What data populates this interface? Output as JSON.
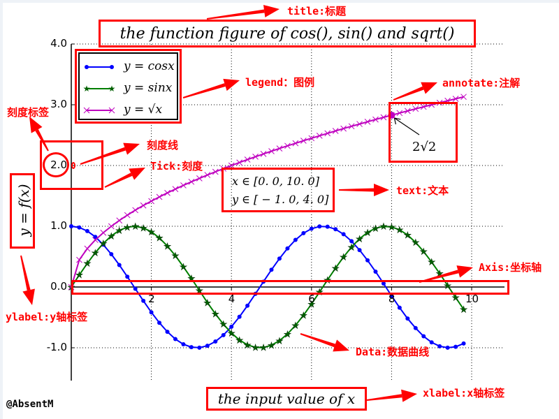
{
  "chart_data": {
    "type": "line",
    "title": "the function figure of cos(), sin() and sqrt()",
    "xlabel": "the input value of x",
    "ylabel": "y = f(x)",
    "xlim": [
      0,
      10.8
    ],
    "ylim": [
      -1.54,
      4.0
    ],
    "grid": true,
    "legend_position": "upper left",
    "x_ticks": [
      2,
      4,
      6,
      8,
      10
    ],
    "x_tick_labels": [
      "2",
      "4",
      "6",
      "8",
      "10"
    ],
    "y_ticks": [
      4.0,
      3.0,
      2.0,
      1.0,
      0.0,
      -1.0
    ],
    "y_tick_labels": [
      "4.0",
      "3.0",
      "2.0",
      "1.0",
      "0.0",
      "-1.0"
    ],
    "x": [
      0.0,
      0.2,
      0.4,
      0.6,
      0.8,
      1.0,
      1.2,
      1.4,
      1.6,
      1.8,
      2.0,
      2.2,
      2.4,
      2.6,
      2.8,
      3.0,
      3.2,
      3.4,
      3.6,
      3.8,
      4.0,
      4.2,
      4.4,
      4.6,
      4.8,
      5.0,
      5.2,
      5.4,
      5.6,
      5.8,
      6.0,
      6.2,
      6.4,
      6.6,
      6.8,
      7.0,
      7.2,
      7.4,
      7.6,
      7.8,
      8.0,
      8.2,
      8.4,
      8.6,
      8.8,
      9.0,
      9.2,
      9.4,
      9.6,
      9.8
    ],
    "series": [
      {
        "name": "y = cosx",
        "color": "#0000ff",
        "marker": "dot",
        "values": [
          1.0,
          0.98,
          0.921,
          0.825,
          0.697,
          0.54,
          0.362,
          0.17,
          -0.029,
          -0.227,
          -0.416,
          -0.589,
          -0.737,
          -0.857,
          -0.942,
          -0.99,
          -0.998,
          -0.967,
          -0.897,
          -0.791,
          -0.654,
          -0.49,
          -0.307,
          -0.112,
          0.087,
          0.284,
          0.469,
          0.635,
          0.776,
          0.886,
          0.96,
          0.997,
          0.993,
          0.951,
          0.869,
          0.754,
          0.608,
          0.439,
          0.253,
          0.057,
          -0.146,
          -0.34,
          -0.519,
          -0.676,
          -0.811,
          -0.911,
          -0.975,
          -0.999,
          -0.984,
          -0.93
        ]
      },
      {
        "name": "y = sinx",
        "color": "#007f00",
        "marker": "star",
        "values": [
          0.0,
          0.199,
          0.389,
          0.565,
          0.717,
          0.841,
          0.932,
          0.985,
          1.0,
          0.974,
          0.909,
          0.808,
          0.675,
          0.516,
          0.335,
          0.141,
          -0.058,
          -0.256,
          -0.443,
          -0.612,
          -0.757,
          -0.872,
          -0.952,
          -0.994,
          -0.996,
          -0.959,
          -0.883,
          -0.773,
          -0.631,
          -0.465,
          -0.279,
          -0.083,
          0.117,
          0.312,
          0.494,
          0.657,
          0.794,
          0.899,
          0.968,
          0.998,
          0.989,
          0.941,
          0.855,
          0.734,
          0.585,
          0.412,
          0.223,
          0.025,
          -0.174,
          -0.366
        ]
      },
      {
        "name": "y = sqrt(x)",
        "color": "#bf00bf",
        "marker": "x",
        "values": [
          0.0,
          0.447,
          0.632,
          0.775,
          0.894,
          1.0,
          1.095,
          1.183,
          1.265,
          1.342,
          1.414,
          1.483,
          1.549,
          1.612,
          1.673,
          1.732,
          1.789,
          1.844,
          1.897,
          1.949,
          2.0,
          2.049,
          2.098,
          2.145,
          2.191,
          2.236,
          2.28,
          2.324,
          2.366,
          2.408,
          2.449,
          2.49,
          2.53,
          2.569,
          2.608,
          2.646,
          2.683,
          2.72,
          2.757,
          2.793,
          2.828,
          2.864,
          2.898,
          2.933,
          2.966,
          3.0,
          3.033,
          3.066,
          3.098,
          3.13
        ]
      }
    ],
    "annotation": {
      "text": "2√2",
      "point": [
        8,
        2.828
      ]
    },
    "text": [
      "x ∈ [0.0, 10.0]",
      "y ∈ [−1.0, 4.0]"
    ]
  },
  "title": "the function figure of cos(), sin() and sqrt()",
  "xlabel": "the input value of x",
  "ylabel": "y = f(x)",
  "legend": {
    "items": [
      {
        "label": "y = cosx",
        "color": "#0000ff"
      },
      {
        "label": "y = sinx",
        "color": "#007f00"
      },
      {
        "label": "y = √x",
        "color": "#bf00bf"
      }
    ]
  },
  "ticks": {
    "x": [
      "2",
      "4",
      "6",
      "8",
      "10"
    ],
    "y": [
      "4.0",
      "3.0",
      "2.0",
      "1.0",
      "0.0",
      "-1.0"
    ]
  },
  "textbox": {
    "line1": "x ∈ [0. 0,  10. 0]",
    "line2": "y ∈ [ − 1. 0,  4. 0]"
  },
  "annotation_text": "2√2",
  "annotations": {
    "title": "title:标题",
    "legend": "legend：图例",
    "annotate": "annotate:注解",
    "tick_label": "刻度标签",
    "tick_line": "刻度线",
    "tick": "Tick:刻度",
    "text": "text:文本",
    "axis": "Axis:坐标轴",
    "ylabel": "ylabel:y轴标签",
    "data": "Data:数据曲线",
    "xlabel": "xlabel:x轴标签"
  },
  "watermark": "@AbsentM",
  "colors": {
    "annotation_red": "#ff0000",
    "cos": "#0000ff",
    "sin": "#007f00",
    "sqrt": "#bf00bf"
  }
}
